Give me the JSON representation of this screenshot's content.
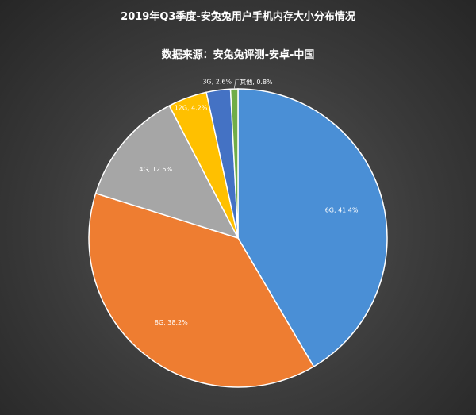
{
  "chart_data": {
    "type": "pie",
    "title": "2019年Q3季度-安兔兔用户手机内存大小分布情况",
    "subtitle": "数据来源：安兔兔评测-安卓-中国",
    "categories": [
      "6G",
      "8G",
      "4G",
      "12G",
      "3G",
      "其他"
    ],
    "values": [
      41.4,
      38.2,
      12.5,
      4.2,
      2.6,
      0.8
    ],
    "labels": [
      "6G, 41.4%",
      "8G, 38.2%",
      "4G, 12.5%",
      "12G, 4.2%",
      "3G, 2.6%",
      "其他, 0.8%"
    ],
    "colors": [
      "#4a8fd6",
      "#ee7d31",
      "#a6a6a6",
      "#ffc000",
      "#4472c4",
      "#70ad47"
    ],
    "label_colors": [
      "#ffffff",
      "#ffffff",
      "#ffffff",
      "#ffffff",
      "#ffffff",
      "#ffffff"
    ],
    "legend": "none"
  }
}
